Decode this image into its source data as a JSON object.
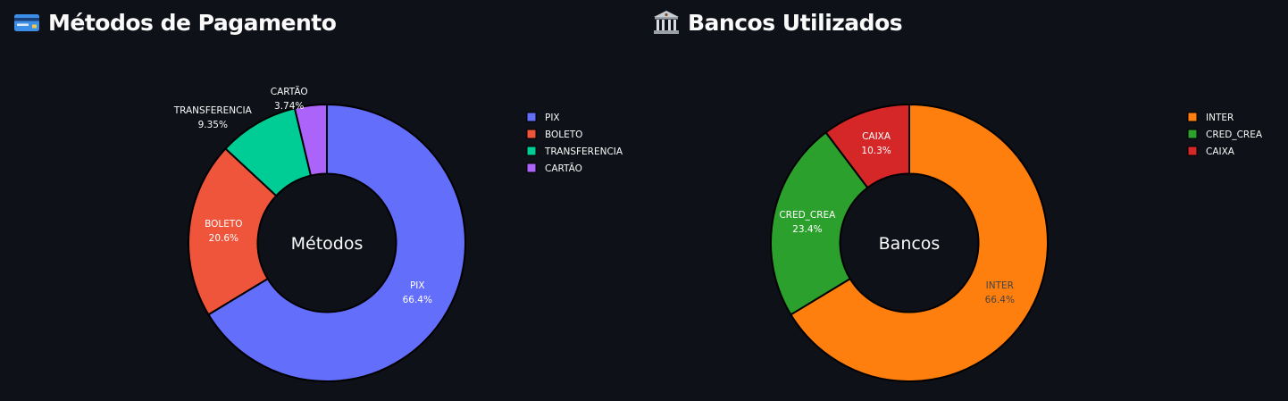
{
  "chart_data": [
    {
      "type": "pie",
      "title": "Métodos de Pagamento",
      "title_icon": "credit-card-icon",
      "center_text": "Métodos",
      "hole": 0.5,
      "categories": [
        "PIX",
        "BOLETO",
        "TRANSFERENCIA",
        "CARTÃO"
      ],
      "values": [
        66.4,
        20.6,
        9.35,
        3.74
      ],
      "value_labels": [
        "66.4%",
        "20.6%",
        "9.35%",
        "3.74%"
      ],
      "colors": [
        "#636efa",
        "#ef553b",
        "#00cc96",
        "#ab63fa"
      ],
      "legend_position": "top-right"
    },
    {
      "type": "pie",
      "title": "Bancos Utilizados",
      "title_icon": "bank-icon",
      "center_text": "Bancos",
      "hole": 0.5,
      "categories": [
        "INTER",
        "CRED_CREA",
        "CAIXA"
      ],
      "values": [
        66.4,
        23.4,
        10.3
      ],
      "value_labels": [
        "66.4%",
        "23.4%",
        "10.3%"
      ],
      "colors": [
        "#ff7f0e",
        "#2ca02c",
        "#d62728"
      ],
      "legend_position": "top-right"
    }
  ]
}
